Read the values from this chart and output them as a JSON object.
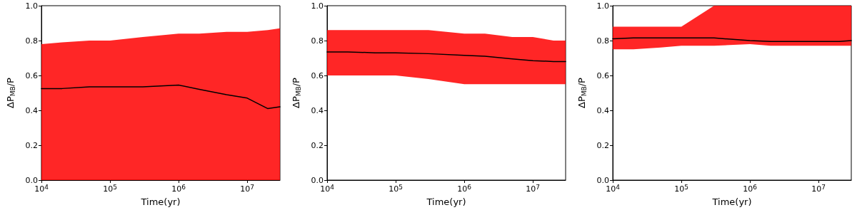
{
  "chart_data": [
    {
      "type": "line",
      "xlabel": "Time(yr)",
      "ylabel": "ΔP$_{MB}$/P",
      "log": "x",
      "xlim": [
        10000,
        30000000
      ],
      "ylim": [
        0,
        1
      ],
      "xticks": [
        {
          "value": 10000,
          "label": "10$^{4}$"
        },
        {
          "value": 100000,
          "label": "10$^{5}$"
        },
        {
          "value": 1000000,
          "label": "10$^{6}$"
        },
        {
          "value": 10000000,
          "label": "10$^{7}$"
        }
      ],
      "yticks": [
        {
          "value": 0,
          "label": "0.0"
        },
        {
          "value": 0.2,
          "label": "0.2"
        },
        {
          "value": 0.4,
          "label": "0.4"
        },
        {
          "value": 0.6,
          "label": "0.6"
        },
        {
          "value": 0.8,
          "label": "0.8"
        },
        {
          "value": 1,
          "label": "1.0"
        }
      ],
      "x": [
        10000,
        20000,
        50000,
        100000,
        300000,
        1000000,
        2000000,
        5000000,
        10000000,
        20000000,
        30000000
      ],
      "marker": "none",
      "line_style": "solid",
      "series": [
        {
          "color": "#000000",
          "values": [
            0.525,
            0.525,
            0.535,
            0.535,
            0.535,
            0.545,
            0.52,
            0.49,
            0.47,
            0.41,
            0.42
          ],
          "lower": [
            0,
            0,
            0,
            0,
            0,
            0,
            0,
            0,
            0,
            0,
            0
          ],
          "upper": [
            0.78,
            0.79,
            0.8,
            0.8,
            0.82,
            0.84,
            0.84,
            0.85,
            0.85,
            0.86,
            0.87
          ]
        }
      ]
    },
    {
      "type": "line",
      "xlabel": "Time(yr)",
      "ylabel": "ΔP$_{MB}$/P",
      "log": "x",
      "xlim": [
        10000,
        30000000
      ],
      "ylim": [
        0,
        1
      ],
      "xticks": [
        {
          "value": 10000,
          "label": "10$^{4}$"
        },
        {
          "value": 100000,
          "label": "10$^{5}$"
        },
        {
          "value": 1000000,
          "label": "10$^{6}$"
        },
        {
          "value": 10000000,
          "label": "10$^{7}$"
        }
      ],
      "yticks": [
        {
          "value": 0,
          "label": "0.0"
        },
        {
          "value": 0.2,
          "label": "0.2"
        },
        {
          "value": 0.4,
          "label": "0.4"
        },
        {
          "value": 0.6,
          "label": "0.6"
        },
        {
          "value": 0.8,
          "label": "0.8"
        },
        {
          "value": 1,
          "label": "1.0"
        }
      ],
      "x": [
        10000,
        20000,
        50000,
        100000,
        300000,
        1000000,
        2000000,
        5000000,
        10000000,
        20000000,
        30000000
      ],
      "marker": "none",
      "line_style": "solid",
      "series": [
        {
          "color": "#000000",
          "values": [
            0.735,
            0.735,
            0.73,
            0.73,
            0.725,
            0.715,
            0.71,
            0.695,
            0.685,
            0.68,
            0.68
          ],
          "lower": [
            0.6,
            0.6,
            0.6,
            0.6,
            0.58,
            0.55,
            0.55,
            0.55,
            0.55,
            0.55,
            0.55
          ],
          "upper": [
            0.86,
            0.86,
            0.86,
            0.86,
            0.86,
            0.84,
            0.84,
            0.82,
            0.82,
            0.8,
            0.8
          ]
        }
      ]
    },
    {
      "type": "line",
      "xlabel": "Time(yr)",
      "ylabel": "ΔP$_{MB}$/P",
      "log": "x",
      "xlim": [
        10000,
        30000000
      ],
      "ylim": [
        0,
        1
      ],
      "xticks": [
        {
          "value": 10000,
          "label": "10$^{4}$"
        },
        {
          "value": 100000,
          "label": "10$^{5}$"
        },
        {
          "value": 1000000,
          "label": "10$^{6}$"
        },
        {
          "value": 10000000,
          "label": "10$^{7}$"
        }
      ],
      "yticks": [
        {
          "value": 0,
          "label": "0.0"
        },
        {
          "value": 0.2,
          "label": "0.2"
        },
        {
          "value": 0.4,
          "label": "0.4"
        },
        {
          "value": 0.6,
          "label": "0.6"
        },
        {
          "value": 0.8,
          "label": "0.8"
        },
        {
          "value": 1,
          "label": "1.0"
        }
      ],
      "x": [
        10000,
        20000,
        50000,
        100000,
        300000,
        1000000,
        2000000,
        5000000,
        10000000,
        20000000,
        30000000
      ],
      "marker": "none",
      "line_style": "solid",
      "series": [
        {
          "color": "#000000",
          "values": [
            0.81,
            0.815,
            0.815,
            0.815,
            0.815,
            0.8,
            0.795,
            0.795,
            0.795,
            0.795,
            0.8
          ],
          "lower": [
            0.75,
            0.75,
            0.76,
            0.77,
            0.77,
            0.78,
            0.77,
            0.77,
            0.77,
            0.77,
            0.77
          ],
          "upper": [
            0.88,
            0.88,
            0.88,
            0.88,
            1,
            1,
            1,
            1,
            1,
            1,
            1
          ]
        }
      ]
    }
  ]
}
